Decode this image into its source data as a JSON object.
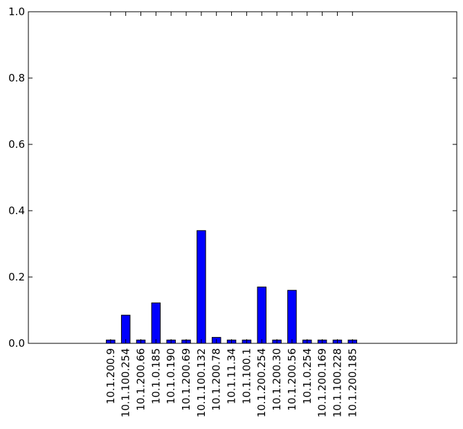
{
  "chart_data": {
    "type": "bar",
    "title": "",
    "xlabel": "",
    "ylabel": "",
    "ylim": [
      0,
      1.0
    ],
    "yticks": [
      "0.0",
      "0.2",
      "0.4",
      "0.6",
      "0.8",
      "1.0"
    ],
    "grid": false,
    "legend": "none",
    "bar_color": "#0000ff",
    "categories": [
      "10.1.200.9",
      "10.1.100.254",
      "10.1.200.66",
      "10.1.0.185",
      "10.1.0.190",
      "10.1.200.69",
      "10.1.100.132",
      "10.1.200.78",
      "10.1.11.34",
      "10.1.100.1",
      "10.1.200.254",
      "10.1.200.30",
      "10.1.200.56",
      "10.1.0.254",
      "10.1.200.169",
      "10.1.100.228",
      "10.1.200.185"
    ],
    "values": [
      0.01,
      0.085,
      0.01,
      0.122,
      0.01,
      0.01,
      0.34,
      0.018,
      0.01,
      0.01,
      0.17,
      0.01,
      0.16,
      0.01,
      0.01,
      0.01,
      0.01
    ]
  }
}
